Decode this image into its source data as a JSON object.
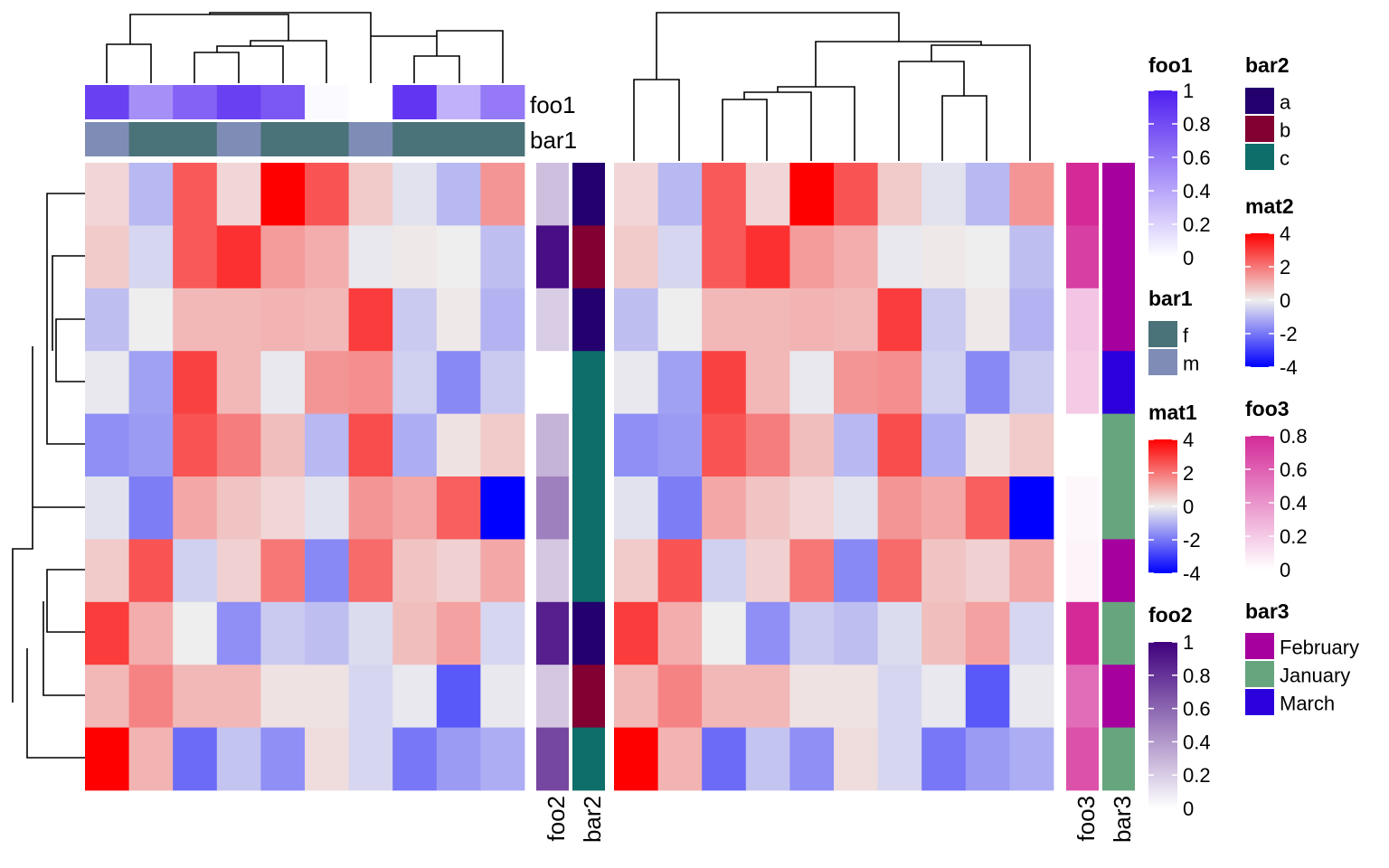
{
  "chart_data": {
    "type": "heatmap",
    "mat1": [
      [
        0.4,
        -0.9,
        2.5,
        0.4,
        4.2,
        2.6,
        0.6,
        -0.2,
        -0.9,
        1.5
      ],
      [
        0.6,
        -0.4,
        2.5,
        3.2,
        1.4,
        1.1,
        -0.1,
        0.1,
        0.0,
        -0.8
      ],
      [
        -0.8,
        0.0,
        0.9,
        0.9,
        1.0,
        0.9,
        3.0,
        -0.6,
        0.1,
        -1.0
      ],
      [
        -0.1,
        -1.3,
        2.9,
        0.9,
        -0.1,
        1.5,
        1.6,
        -0.5,
        -1.7,
        -0.6
      ],
      [
        -1.6,
        -1.4,
        2.6,
        1.9,
        0.8,
        -0.9,
        2.7,
        -1.1,
        0.2,
        0.6
      ],
      [
        -0.2,
        -1.9,
        1.2,
        0.7,
        0.4,
        -0.2,
        1.5,
        1.2,
        2.4,
        -4.0
      ],
      [
        0.6,
        2.6,
        -0.5,
        0.5,
        2.0,
        -1.7,
        2.2,
        0.7,
        0.5,
        1.2
      ],
      [
        3.0,
        1.1,
        0.0,
        -1.6,
        -0.6,
        -0.8,
        -0.3,
        0.8,
        1.3,
        -0.4
      ],
      [
        0.9,
        1.8,
        0.9,
        0.9,
        0.2,
        0.2,
        -0.4,
        -0.1,
        -2.5,
        -0.1
      ],
      [
        4.0,
        1.0,
        -2.2,
        -0.7,
        -1.6,
        0.3,
        -0.4,
        -2.0,
        -1.4,
        -1.1
      ]
    ],
    "foo1": [
      0.85,
      0.5,
      0.7,
      0.85,
      0.75,
      0.02,
      0.0,
      0.9,
      0.35,
      0.6
    ],
    "bar1": [
      "m",
      "f",
      "f",
      "m",
      "f",
      "f",
      "m",
      "f",
      "f",
      "f"
    ],
    "foo2": [
      0.25,
      0.95,
      0.2,
      0.0,
      0.3,
      0.5,
      0.22,
      0.88,
      0.22,
      0.72
    ],
    "bar2": [
      "a",
      "b",
      "a",
      "c",
      "c",
      "c",
      "c",
      "a",
      "b",
      "c"
    ],
    "foo3": [
      0.8,
      0.72,
      0.22,
      0.2,
      0.0,
      0.03,
      0.04,
      0.8,
      0.55,
      0.65
    ],
    "bar3": [
      "February",
      "February",
      "February",
      "March",
      "January",
      "January",
      "February",
      "January",
      "February",
      "January"
    ],
    "foo1_range": [
      0,
      1
    ],
    "foo2_range": [
      0,
      1
    ],
    "foo3_range": [
      0,
      0.8
    ],
    "mat_range": [
      -4,
      4
    ]
  },
  "labels": {
    "foo1": "foo1",
    "bar1": "bar1",
    "foo2": "foo2",
    "bar2": "bar2",
    "foo3": "foo3",
    "bar3": "bar3"
  },
  "legends": {
    "foo1": {
      "title": "foo1",
      "ticks": [
        "1",
        "0.8",
        "0.6",
        "0.4",
        "0.2",
        "0"
      ]
    },
    "bar1": {
      "title": "bar1",
      "items": [
        {
          "label": "f",
          "color": "#4A7279"
        },
        {
          "label": "m",
          "color": "#7F8DB6"
        }
      ]
    },
    "mat1": {
      "title": "mat1",
      "ticks": [
        "4",
        "2",
        "0",
        "-2",
        "-4"
      ]
    },
    "foo2": {
      "title": "foo2",
      "ticks": [
        "1",
        "0.8",
        "0.6",
        "0.4",
        "0.2",
        "0"
      ]
    },
    "bar2": {
      "title": "bar2",
      "items": [
        {
          "label": "a",
          "color": "#23006E"
        },
        {
          "label": "b",
          "color": "#820032"
        },
        {
          "label": "c",
          "color": "#0E6E69"
        }
      ]
    },
    "mat2": {
      "title": "mat2",
      "ticks": [
        "4",
        "2",
        "0",
        "-2",
        "-4"
      ]
    },
    "foo3": {
      "title": "foo3",
      "ticks": [
        "0.8",
        "0.6",
        "0.4",
        "0.2",
        "0"
      ]
    },
    "bar3": {
      "title": "bar3",
      "items": [
        {
          "label": "February",
          "color": "#A6009F"
        },
        {
          "label": "January",
          "color": "#66A57E"
        },
        {
          "label": "March",
          "color": "#2C00DD"
        }
      ]
    }
  },
  "colors": {
    "mat_low": "#0000FF",
    "mat_mid": "#EEEEEE",
    "mat_high": "#FF0000",
    "foo1_high": "#4F1FF0",
    "foo2_high": "#3F007D",
    "foo3_high": "#D42A98"
  }
}
